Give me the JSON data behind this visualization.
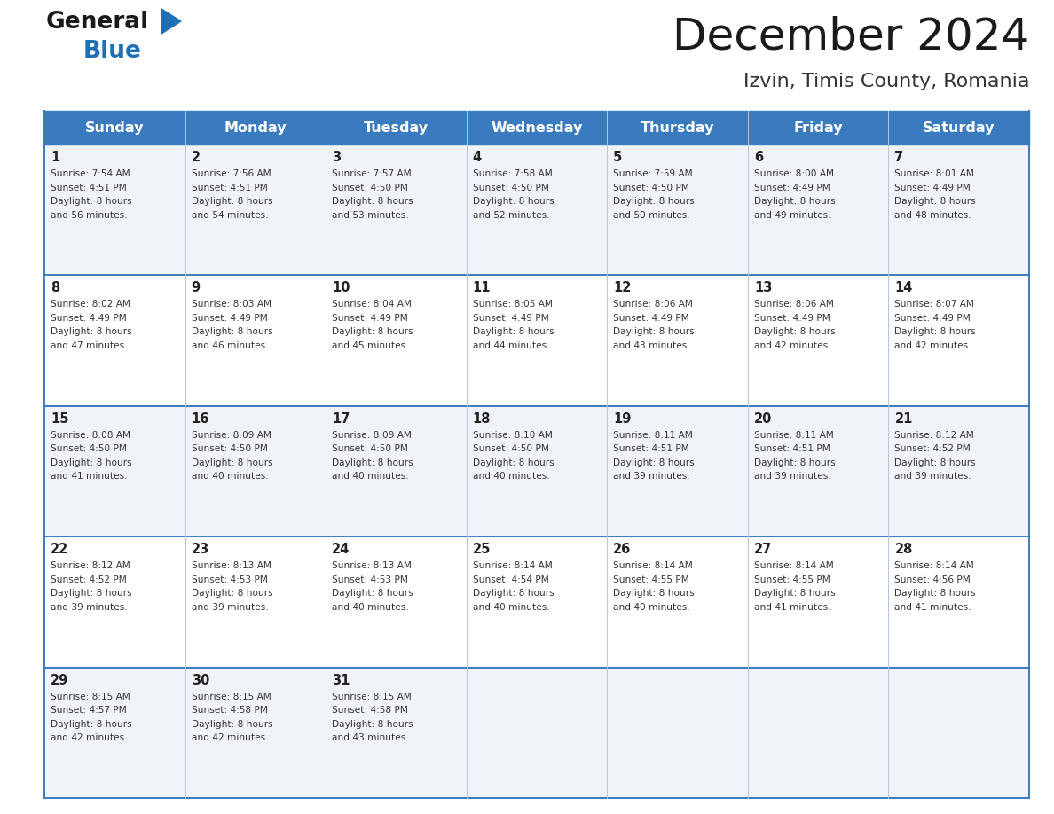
{
  "title": "December 2024",
  "subtitle": "Izvin, Timis County, Romania",
  "header_color": "#3a7bbf",
  "header_text_color": "#ffffff",
  "cell_bg_odd": "#f0f4f8",
  "cell_bg_even": "#ffffff",
  "day_headers": [
    "Sunday",
    "Monday",
    "Tuesday",
    "Wednesday",
    "Thursday",
    "Friday",
    "Saturday"
  ],
  "weeks": [
    [
      {
        "day": "1",
        "sunrise": "7:54 AM",
        "sunset": "4:51 PM",
        "daylight": "8 hours\nand 56 minutes."
      },
      {
        "day": "2",
        "sunrise": "7:56 AM",
        "sunset": "4:51 PM",
        "daylight": "8 hours\nand 54 minutes."
      },
      {
        "day": "3",
        "sunrise": "7:57 AM",
        "sunset": "4:50 PM",
        "daylight": "8 hours\nand 53 minutes."
      },
      {
        "day": "4",
        "sunrise": "7:58 AM",
        "sunset": "4:50 PM",
        "daylight": "8 hours\nand 52 minutes."
      },
      {
        "day": "5",
        "sunrise": "7:59 AM",
        "sunset": "4:50 PM",
        "daylight": "8 hours\nand 50 minutes."
      },
      {
        "day": "6",
        "sunrise": "8:00 AM",
        "sunset": "4:49 PM",
        "daylight": "8 hours\nand 49 minutes."
      },
      {
        "day": "7",
        "sunrise": "8:01 AM",
        "sunset": "4:49 PM",
        "daylight": "8 hours\nand 48 minutes."
      }
    ],
    [
      {
        "day": "8",
        "sunrise": "8:02 AM",
        "sunset": "4:49 PM",
        "daylight": "8 hours\nand 47 minutes."
      },
      {
        "day": "9",
        "sunrise": "8:03 AM",
        "sunset": "4:49 PM",
        "daylight": "8 hours\nand 46 minutes."
      },
      {
        "day": "10",
        "sunrise": "8:04 AM",
        "sunset": "4:49 PM",
        "daylight": "8 hours\nand 45 minutes."
      },
      {
        "day": "11",
        "sunrise": "8:05 AM",
        "sunset": "4:49 PM",
        "daylight": "8 hours\nand 44 minutes."
      },
      {
        "day": "12",
        "sunrise": "8:06 AM",
        "sunset": "4:49 PM",
        "daylight": "8 hours\nand 43 minutes."
      },
      {
        "day": "13",
        "sunrise": "8:06 AM",
        "sunset": "4:49 PM",
        "daylight": "8 hours\nand 42 minutes."
      },
      {
        "day": "14",
        "sunrise": "8:07 AM",
        "sunset": "4:49 PM",
        "daylight": "8 hours\nand 42 minutes."
      }
    ],
    [
      {
        "day": "15",
        "sunrise": "8:08 AM",
        "sunset": "4:50 PM",
        "daylight": "8 hours\nand 41 minutes."
      },
      {
        "day": "16",
        "sunrise": "8:09 AM",
        "sunset": "4:50 PM",
        "daylight": "8 hours\nand 40 minutes."
      },
      {
        "day": "17",
        "sunrise": "8:09 AM",
        "sunset": "4:50 PM",
        "daylight": "8 hours\nand 40 minutes."
      },
      {
        "day": "18",
        "sunrise": "8:10 AM",
        "sunset": "4:50 PM",
        "daylight": "8 hours\nand 40 minutes."
      },
      {
        "day": "19",
        "sunrise": "8:11 AM",
        "sunset": "4:51 PM",
        "daylight": "8 hours\nand 39 minutes."
      },
      {
        "day": "20",
        "sunrise": "8:11 AM",
        "sunset": "4:51 PM",
        "daylight": "8 hours\nand 39 minutes."
      },
      {
        "day": "21",
        "sunrise": "8:12 AM",
        "sunset": "4:52 PM",
        "daylight": "8 hours\nand 39 minutes."
      }
    ],
    [
      {
        "day": "22",
        "sunrise": "8:12 AM",
        "sunset": "4:52 PM",
        "daylight": "8 hours\nand 39 minutes."
      },
      {
        "day": "23",
        "sunrise": "8:13 AM",
        "sunset": "4:53 PM",
        "daylight": "8 hours\nand 39 minutes."
      },
      {
        "day": "24",
        "sunrise": "8:13 AM",
        "sunset": "4:53 PM",
        "daylight": "8 hours\nand 40 minutes."
      },
      {
        "day": "25",
        "sunrise": "8:14 AM",
        "sunset": "4:54 PM",
        "daylight": "8 hours\nand 40 minutes."
      },
      {
        "day": "26",
        "sunrise": "8:14 AM",
        "sunset": "4:55 PM",
        "daylight": "8 hours\nand 40 minutes."
      },
      {
        "day": "27",
        "sunrise": "8:14 AM",
        "sunset": "4:55 PM",
        "daylight": "8 hours\nand 41 minutes."
      },
      {
        "day": "28",
        "sunrise": "8:14 AM",
        "sunset": "4:56 PM",
        "daylight": "8 hours\nand 41 minutes."
      }
    ],
    [
      {
        "day": "29",
        "sunrise": "8:15 AM",
        "sunset": "4:57 PM",
        "daylight": "8 hours\nand 42 minutes."
      },
      {
        "day": "30",
        "sunrise": "8:15 AM",
        "sunset": "4:58 PM",
        "daylight": "8 hours\nand 42 minutes."
      },
      {
        "day": "31",
        "sunrise": "8:15 AM",
        "sunset": "4:58 PM",
        "daylight": "8 hours\nand 43 minutes."
      },
      null,
      null,
      null,
      null
    ]
  ],
  "logo_color_general": "#1a1a1a",
  "logo_color_blue": "#1f6fb5",
  "title_color": "#1a1a1a",
  "subtitle_color": "#333333",
  "border_color": "#3a7bbf",
  "divider_color": "#afc8e0",
  "row_divider_color": "#3a7bbf"
}
